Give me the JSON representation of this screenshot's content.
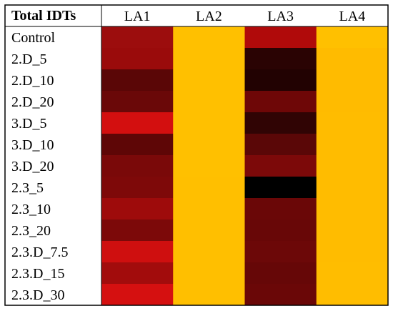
{
  "chart_data": {
    "type": "heatmap",
    "title": "Total IDTs",
    "columns": [
      "LA1",
      "LA2",
      "LA3",
      "LA4"
    ],
    "rows": [
      "Control",
      "2.D_5",
      "2.D_10",
      "2.D_20",
      "3.D_5",
      "3.D_10",
      "3.D_20",
      "2.3_5",
      "2.3_10",
      "2.3_20",
      "2.3.D_7.5",
      "2.3.D_15",
      "2.3.D_30"
    ],
    "cell_colors": [
      [
        "#9c0d0d",
        "#ffc000",
        "#b00a0a",
        "#ffc000"
      ],
      [
        "#9a0b0b",
        "#ffc000",
        "#2a0303",
        "#ffbb00"
      ],
      [
        "#5a0606",
        "#ffc000",
        "#220202",
        "#ffbb00"
      ],
      [
        "#6a0808",
        "#ffc000",
        "#6e0707",
        "#ffbb00"
      ],
      [
        "#d30f0f",
        "#ffc000",
        "#300404",
        "#ffbc00"
      ],
      [
        "#5e0606",
        "#ffc000",
        "#5a0707",
        "#ffbc00"
      ],
      [
        "#7a0909",
        "#ffc000",
        "#7c0909",
        "#ffbc00"
      ],
      [
        "#7e0909",
        "#ffbf00",
        "#000000",
        "#ffbc00"
      ],
      [
        "#9e0b0b",
        "#ffbf00",
        "#6a0707",
        "#ffbc00"
      ],
      [
        "#7c0909",
        "#ffbf00",
        "#680707",
        "#ffbc00"
      ],
      [
        "#cf0f0f",
        "#ffbf00",
        "#6c0808",
        "#ffbc00"
      ],
      [
        "#a20c0c",
        "#ffbf00",
        "#660707",
        "#ffbd00"
      ],
      [
        "#d51010",
        "#ffbf00",
        "#6a0707",
        "#ffbd00"
      ]
    ],
    "grid": false,
    "legend": "none"
  }
}
